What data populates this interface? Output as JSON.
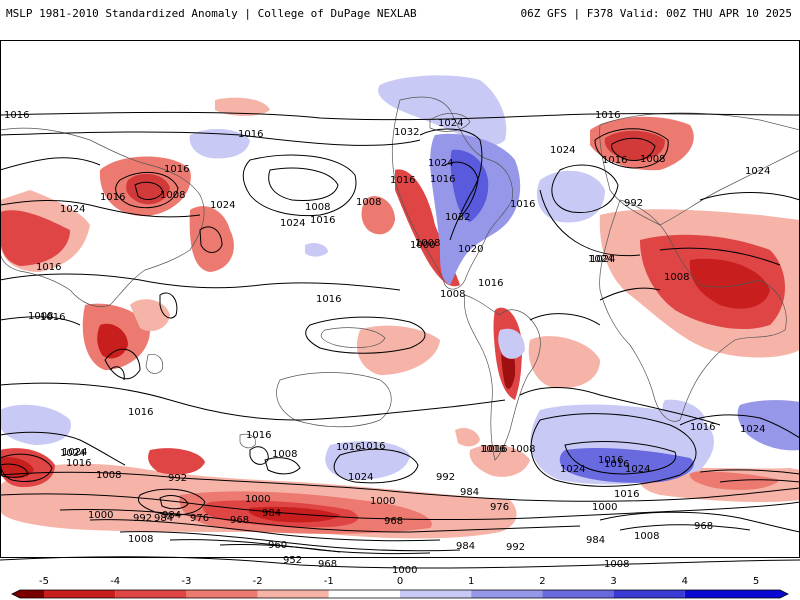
{
  "header": {
    "left": "MSLP 1981-2010 Standardized Anomaly | College of DuPage NEXLAB",
    "right": "06Z GFS | F378 Valid: 00Z THU APR 10 2025"
  },
  "colorbar": {
    "ticks": [
      "-5",
      "-4",
      "-3",
      "-2",
      "-1",
      "0",
      "1",
      "2",
      "3",
      "4",
      "5"
    ],
    "colors": [
      "#7a0000",
      "#c81e1e",
      "#e04545",
      "#ec7a70",
      "#f6b3a8",
      "#ffffff",
      "#c9c9f5",
      "#9797ea",
      "#6a6ae0",
      "#3b3bd6",
      "#0a0ad0"
    ]
  },
  "map": {
    "contour_labels": [
      "1016",
      "1016",
      "1024",
      "1016",
      "1008",
      "1016",
      "1024",
      "1024",
      "1016",
      "1008",
      "1016",
      "1032",
      "1024",
      "1016",
      "1024",
      "1008",
      "1016",
      "1024",
      "1016",
      "1008",
      "1016",
      "1024",
      "1016",
      "1008",
      "1032",
      "1000",
      "1020",
      "1016",
      "1016",
      "992",
      "1024",
      "1008",
      "1016",
      "1016",
      "1008",
      "1024",
      "1008",
      "1016",
      "1024",
      "1016",
      "1016",
      "1016",
      "1008",
      "1016",
      "1016",
      "1024",
      "1008",
      "1024",
      "1024",
      "992",
      "1000",
      "992",
      "984",
      "976",
      "968",
      "960",
      "952",
      "968",
      "1000",
      "1000",
      "984",
      "1008",
      "984",
      "976",
      "968",
      "1000",
      "992",
      "984",
      "1016",
      "984",
      "1000",
      "968",
      "1008",
      "1008",
      "1016",
      "984",
      "992",
      "1008",
      "1024",
      "1016",
      "1024",
      "1016"
    ],
    "contours": [
      "1016",
      "1008",
      "1016",
      "1024",
      "1032",
      "1024",
      "1016",
      "1008",
      "1000",
      "992",
      "984",
      "976",
      "968",
      "960",
      "952"
    ]
  }
}
